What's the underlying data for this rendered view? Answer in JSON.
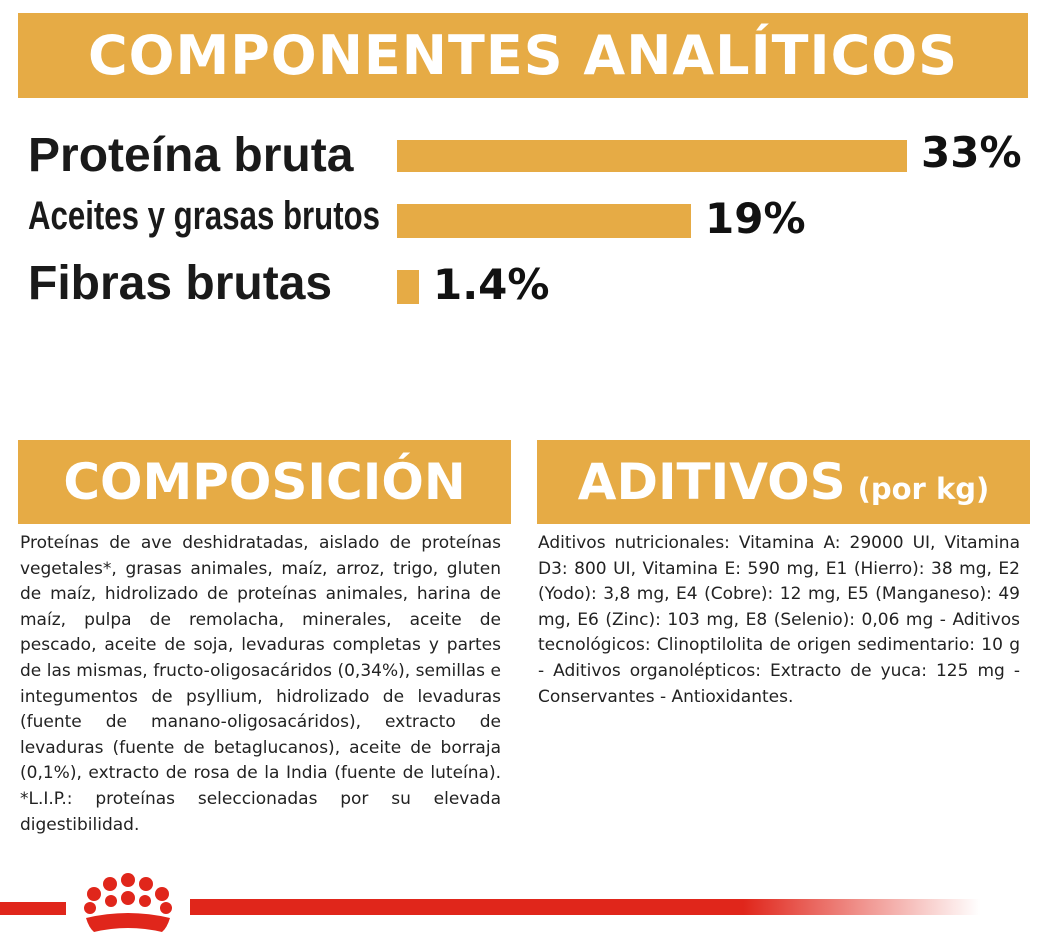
{
  "analiticos": {
    "title": "COMPONENTES ANALÍTICOS",
    "rows": [
      {
        "label": "Proteína bruta",
        "value": "33%",
        "percent": 33
      },
      {
        "label": "Aceites y grasas brutos",
        "value": "19%",
        "percent": 19
      },
      {
        "label": "Fibras brutas",
        "value": "1.4%",
        "percent": 1.4
      }
    ]
  },
  "composicion": {
    "title": "COMPOSICIÓN",
    "text": "Proteínas de ave deshidratadas, aislado de proteínas vegetales*, grasas animales, maíz, arroz, trigo, gluten de maíz, hidrolizado de proteínas animales, harina de maíz, pulpa de remolacha, minerales, aceite de pescado, aceite de soja, levaduras completas y partes de las mismas, fructo-oligosacáridos (0,34%), semillas e integumentos de psyllium, hidrolizado de levaduras (fuente de manano-oligosacáridos), extracto de levaduras (fuente de betaglucanos), aceite de borraja (0,1%), extracto de rosa de la India (fuente de luteína). *L.I.P.: proteínas seleccionadas por su elevada digestibilidad."
  },
  "aditivos": {
    "title": "ADITIVOS",
    "title_suffix": "(por kg)",
    "text": "Aditivos nutricionales: Vitamina A: 29000 UI, Vitamina D3: 800 UI, Vitamina E: 590 mg, E1 (Hierro): 38 mg, E2 (Yodo): 3,8 mg, E4 (Cobre): 12 mg, E5 (Manganeso): 49 mg, E6 (Zinc): 103 mg, E8 (Selenio): 0,06 mg - Aditivos tecnológicos: Clinoptilolita de origen sedimentario: 10 g - Aditivos organolépticos: Extracto de yuca: 125 mg - Conservantes - Antioxidantes."
  },
  "colors": {
    "accent": "#e6ab45",
    "brand_red": "#e0261b"
  },
  "logo": {
    "icon": "royal-canin-crown-icon"
  }
}
